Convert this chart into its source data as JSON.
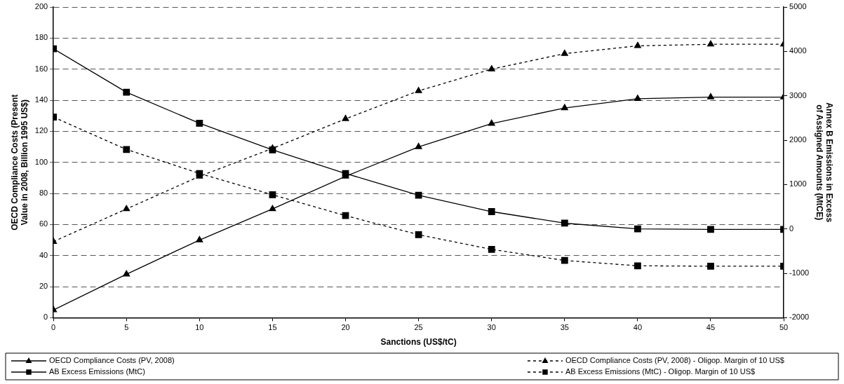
{
  "chart_data": {
    "type": "line",
    "xlabel": "Sanctions (US$/tC)",
    "ylabel": "OECD Compliance Costs (Present Value in 2008, Billion 1995 US$)",
    "y2label": "Annex B Emissions in Excess of Assigned Amounts (MtCE)",
    "x": [
      0,
      5,
      10,
      15,
      20,
      25,
      30,
      35,
      40,
      45,
      50
    ],
    "xlim": [
      0,
      50
    ],
    "xticks": [
      0,
      5,
      10,
      15,
      20,
      25,
      30,
      35,
      40,
      45,
      50
    ],
    "ylim": [
      0,
      200
    ],
    "yticks": [
      0,
      20,
      40,
      60,
      80,
      100,
      120,
      140,
      160,
      180,
      200
    ],
    "y2lim": [
      -2000,
      5000
    ],
    "y2ticks": [
      -2000,
      -1000,
      0,
      1000,
      2000,
      3000,
      4000,
      5000
    ],
    "grid": "y",
    "legend": "bottom",
    "series": [
      {
        "name": "OECD Compliance Costs (PV, 2008)",
        "color": "#000000",
        "marker": "triangle",
        "line_style": "solid",
        "values": [
          5,
          28,
          50,
          70,
          91,
          110,
          125,
          135,
          141,
          142,
          142
        ]
      },
      {
        "name": "OECD Compliance Costs (PV, 2008) - Oligop. Margin of 10 US$",
        "color": "#000000",
        "marker": "triangle",
        "line_style": "dashed",
        "values": [
          49,
          70,
          91,
          109,
          128,
          146,
          160,
          170,
          175,
          176,
          176
        ]
      },
      {
        "name": "AB Excess Emissions (MtC)",
        "color": "#000000",
        "marker": "square",
        "line_style": "solid",
        "axis": "y2",
        "values": [
          4060,
          3080,
          2380,
          1780,
          1250,
          760,
          390,
          130,
          0,
          -10,
          -10
        ]
      },
      {
        "name": "AB Excess Emissions (MtC) - Oligop. Margin of 10 US$",
        "color": "#000000",
        "marker": "square",
        "line_style": "dashed",
        "axis": "y2",
        "values": [
          2520,
          1790,
          1250,
          770,
          300,
          -130,
          -460,
          -710,
          -830,
          -840,
          -840
        ]
      }
    ]
  }
}
